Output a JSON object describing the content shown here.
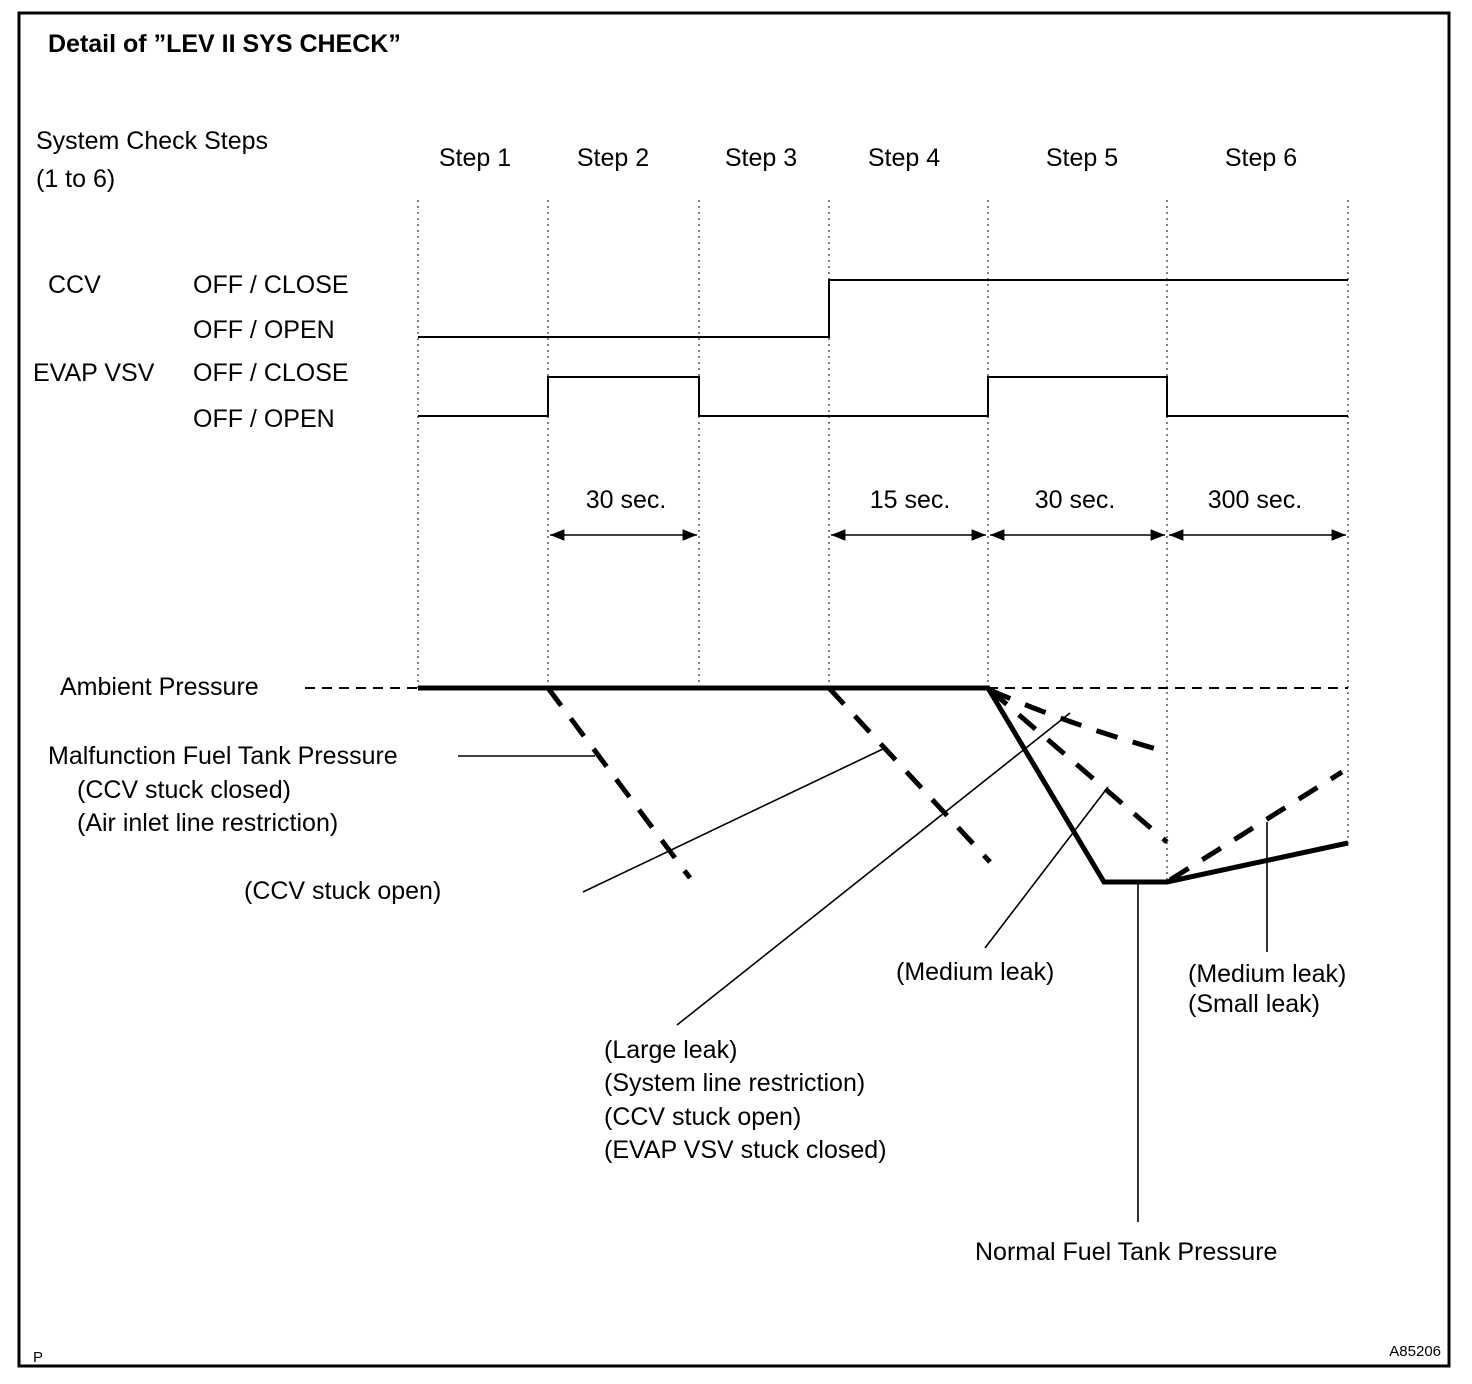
{
  "title": "Detail of ”LEV II SYS CHECK”",
  "steps_label": [
    "System Check Steps",
    "(1 to 6)"
  ],
  "steps": [
    "Step 1",
    "Step 2",
    "Step 3",
    "Step 4",
    "Step 5",
    "Step 6"
  ],
  "signals": {
    "ccv": {
      "name": "CCV",
      "high": "OFF / CLOSE",
      "low": "OFF / OPEN"
    },
    "evap": {
      "name": "EVAP VSV",
      "high": "OFF / CLOSE",
      "low": "OFF / OPEN"
    }
  },
  "durations": [
    "30 sec.",
    "15 sec.",
    "30 sec.",
    "300 sec."
  ],
  "ambient": "Ambient Pressure",
  "malfunction": [
    "Malfunction Fuel Tank Pressure",
    "(CCV stuck closed)",
    "(Air inlet line restriction)"
  ],
  "ccv_open": "(CCV stuck open)",
  "large_leak": [
    "(Large leak)",
    "(System line restriction)",
    "(CCV stuck open)",
    "(EVAP VSV stuck closed)"
  ],
  "medium_leak": "(Medium leak)",
  "step6_leak": [
    "(Medium leak)",
    "(Small leak)"
  ],
  "normal": "Normal Fuel Tank Pressure",
  "corner_left": "P",
  "figure_id": "A85206"
}
